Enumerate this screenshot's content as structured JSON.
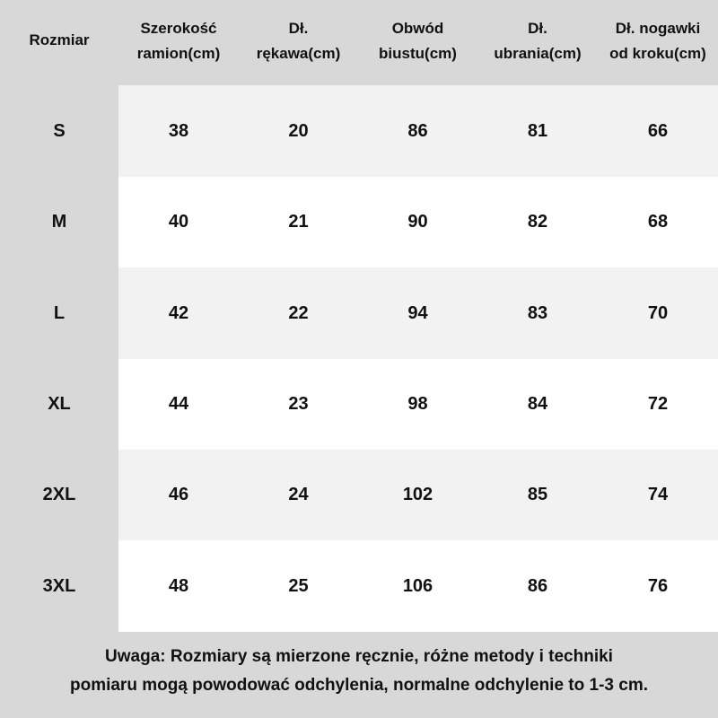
{
  "table": {
    "headers": [
      "Rozmiar",
      "Szerokość\nramion(cm)",
      "Dł.\nrękawa(cm)",
      "Obwód\nbiustu(cm)",
      "Dł.\nubrania(cm)",
      "Dł. nogawki\nod kroku(cm)"
    ],
    "rows": [
      {
        "size": "S",
        "values": [
          "38",
          "20",
          "86",
          "81",
          "66"
        ]
      },
      {
        "size": "M",
        "values": [
          "40",
          "21",
          "90",
          "82",
          "68"
        ]
      },
      {
        "size": "L",
        "values": [
          "42",
          "22",
          "94",
          "83",
          "70"
        ]
      },
      {
        "size": "XL",
        "values": [
          "44",
          "23",
          "98",
          "84",
          "72"
        ]
      },
      {
        "size": "2XL",
        "values": [
          "46",
          "24",
          "102",
          "85",
          "74"
        ]
      },
      {
        "size": "3XL",
        "values": [
          "48",
          "25",
          "106",
          "86",
          "76"
        ]
      }
    ]
  },
  "note": "Uwaga: Rozmiary są mierzone ręcznie, różne metody i techniki\npomiaru mogą powodować odchylenia, normalne odchylenie to 1-3 cm."
}
